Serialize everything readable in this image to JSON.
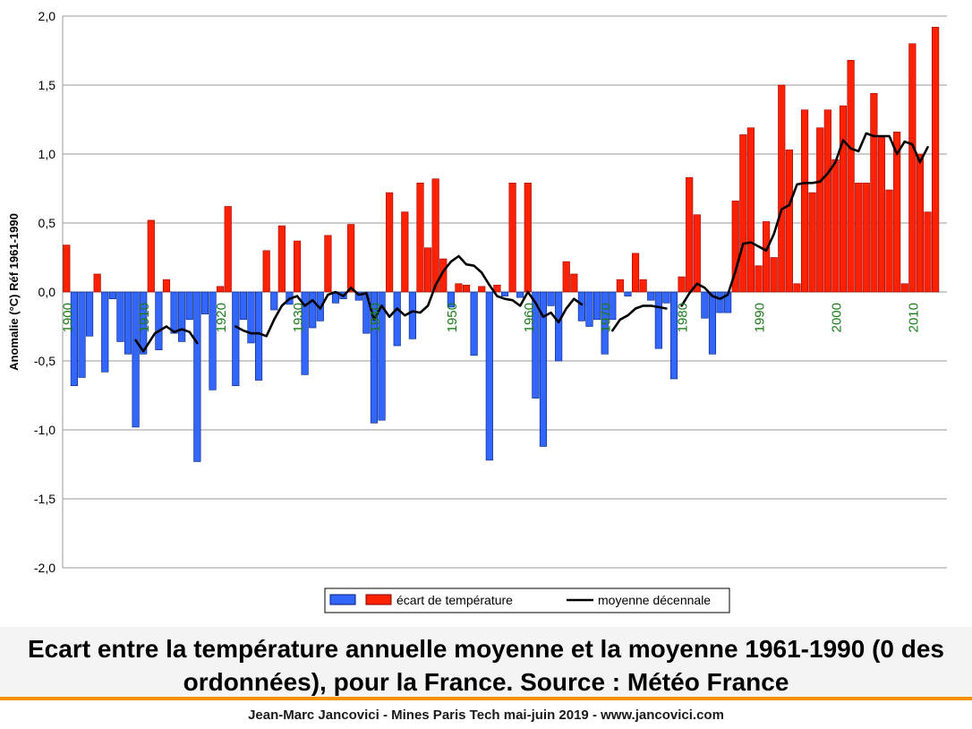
{
  "caption": {
    "line1": "Ecart entre la température annuelle moyenne et la moyenne 1961-1990 (0 des",
    "line2": "ordonnées), pour la France. Source : Météo France"
  },
  "footer": "Jean-Marc Jancovici - Mines Paris Tech mai-juin 2019 - www.jancovici.com",
  "colors": {
    "positive": "#ff2200",
    "negative": "#3366ff",
    "average_line": "#000000",
    "decade_label": "#1a7a1a",
    "caption_rule": "#f39200"
  },
  "chart_data": {
    "type": "bar",
    "title": "",
    "ylabel": "Anomalie (°C) Réf 1961-1990",
    "xlabel": "",
    "ylim": [
      -2.0,
      2.0
    ],
    "yticks": [
      -2.0,
      -1.5,
      -1.0,
      -0.5,
      0.0,
      0.5,
      1.0,
      1.5,
      2.0
    ],
    "ytick_labels": [
      "-2,0",
      "-1,5",
      "-1,0",
      "-0,5",
      "0,0",
      "0,5",
      "1,0",
      "1,5",
      "2,0"
    ],
    "grid": true,
    "legend_position": "bottom",
    "legend": {
      "bars": "écart de température",
      "line": "moyenne décennale"
    },
    "decade_labels": [
      "1900",
      "1910",
      "1920",
      "1930",
      "1940",
      "1950",
      "1960",
      "1970",
      "1980",
      "1990",
      "2000",
      "2010"
    ],
    "years": [
      1900,
      1901,
      1902,
      1903,
      1904,
      1905,
      1906,
      1907,
      1908,
      1909,
      1910,
      1911,
      1912,
      1913,
      1914,
      1915,
      1916,
      1917,
      1918,
      1919,
      1920,
      1921,
      1922,
      1923,
      1924,
      1925,
      1926,
      1927,
      1928,
      1929,
      1930,
      1931,
      1932,
      1933,
      1934,
      1935,
      1936,
      1937,
      1938,
      1939,
      1940,
      1941,
      1942,
      1943,
      1944,
      1945,
      1946,
      1947,
      1948,
      1949,
      1950,
      1951,
      1952,
      1953,
      1954,
      1955,
      1956,
      1957,
      1958,
      1959,
      1960,
      1961,
      1962,
      1963,
      1964,
      1965,
      1966,
      1967,
      1968,
      1969,
      1970,
      1971,
      1972,
      1973,
      1974,
      1975,
      1976,
      1977,
      1978,
      1979,
      1980,
      1981,
      1982,
      1983,
      1984,
      1985,
      1986,
      1987,
      1988,
      1989,
      1990,
      1991,
      1992,
      1993,
      1994,
      1995,
      1996,
      1997,
      1998,
      1999,
      2000,
      2001,
      2002,
      2003,
      2004,
      2005,
      2006,
      2007,
      2008,
      2009,
      2010,
      2011,
      2012,
      2013,
      2014
    ],
    "anomalies": [
      0.34,
      -0.68,
      -0.62,
      -0.32,
      0.13,
      -0.58,
      -0.05,
      -0.36,
      -0.45,
      -0.98,
      -0.45,
      0.52,
      -0.42,
      0.09,
      -0.3,
      -0.36,
      -0.2,
      -1.23,
      -0.16,
      -0.71,
      0.04,
      0.62,
      -0.68,
      -0.2,
      -0.37,
      -0.64,
      0.3,
      -0.13,
      0.48,
      -0.09,
      0.37,
      -0.6,
      -0.26,
      -0.21,
      0.41,
      -0.08,
      -0.05,
      0.49,
      -0.06,
      -0.3,
      -0.95,
      -0.93,
      0.72,
      -0.39,
      0.58,
      -0.34,
      0.79,
      0.32,
      0.82,
      0.24,
      -0.11,
      0.06,
      0.05,
      -0.46,
      0.04,
      -1.22,
      0.05,
      -0.03,
      0.79,
      -0.04,
      0.79,
      -0.77,
      -1.12,
      -0.1,
      -0.5,
      0.22,
      0.13,
      -0.21,
      -0.25,
      -0.2,
      -0.45,
      -0.2,
      0.09,
      -0.03,
      0.28,
      0.09,
      -0.06,
      -0.41,
      -0.08,
      -0.63,
      0.11,
      0.83,
      0.56,
      -0.19,
      -0.45,
      -0.15,
      -0.15,
      0.66,
      1.14,
      1.19,
      0.19,
      0.51,
      0.25,
      1.5,
      1.03,
      0.06,
      1.32,
      0.72,
      1.19,
      1.32,
      0.96,
      1.35,
      1.68,
      0.79,
      0.79,
      1.44,
      1.12,
      0.74,
      1.16,
      0.06,
      1.8,
      1.0,
      0.58,
      1.92,
      0.0
    ],
    "moving_average": [
      {
        "x": 1909,
        "y": -0.35
      },
      {
        "x": 1910,
        "y": -0.43
      },
      {
        "x": 1911.5,
        "y": -0.3
      },
      {
        "x": 1913,
        "y": -0.25
      },
      {
        "x": 1914,
        "y": -0.29
      },
      {
        "x": 1915,
        "y": -0.27
      },
      {
        "x": 1916,
        "y": -0.29
      },
      {
        "x": 1917,
        "y": -0.37
      },
      {
        "x": 1919,
        "y": -0.33
      },
      {
        "x": 1922,
        "y": -0.25
      },
      {
        "x": 1923,
        "y": -0.28
      },
      {
        "x": 1924,
        "y": -0.3
      },
      {
        "x": 1925,
        "y": -0.3
      },
      {
        "x": 1926,
        "y": -0.32
      },
      {
        "x": 1927,
        "y": -0.2
      },
      {
        "x": 1928,
        "y": -0.1
      },
      {
        "x": 1929,
        "y": -0.05
      },
      {
        "x": 1930,
        "y": -0.03
      },
      {
        "x": 1931,
        "y": -0.1
      },
      {
        "x": 1932,
        "y": -0.06
      },
      {
        "x": 1933,
        "y": -0.12
      },
      {
        "x": 1934,
        "y": -0.02
      },
      {
        "x": 1935,
        "y": 0.0
      },
      {
        "x": 1936,
        "y": -0.03
      },
      {
        "x": 1937,
        "y": 0.03
      },
      {
        "x": 1938,
        "y": -0.02
      },
      {
        "x": 1939,
        "y": -0.01
      },
      {
        "x": 1940,
        "y": -0.2
      },
      {
        "x": 1941,
        "y": -0.1
      },
      {
        "x": 1942,
        "y": -0.18
      },
      {
        "x": 1943,
        "y": -0.12
      },
      {
        "x": 1944,
        "y": -0.17
      },
      {
        "x": 1945,
        "y": -0.14
      },
      {
        "x": 1946,
        "y": -0.15
      },
      {
        "x": 1947,
        "y": -0.1
      },
      {
        "x": 1948,
        "y": 0.05
      },
      {
        "x": 1949,
        "y": 0.15
      },
      {
        "x": 1950,
        "y": 0.22
      },
      {
        "x": 1951,
        "y": 0.26
      },
      {
        "x": 1952,
        "y": 0.2
      },
      {
        "x": 1953,
        "y": 0.19
      },
      {
        "x": 1954,
        "y": 0.14
      },
      {
        "x": 1955,
        "y": 0.05
      },
      {
        "x": 1956,
        "y": -0.03
      },
      {
        "x": 1957,
        "y": -0.05
      },
      {
        "x": 1958,
        "y": -0.06
      },
      {
        "x": 1959,
        "y": -0.1
      },
      {
        "x": 1960,
        "y": 0.0
      },
      {
        "x": 1961,
        "y": -0.08
      },
      {
        "x": 1962,
        "y": -0.18
      },
      {
        "x": 1963,
        "y": -0.15
      },
      {
        "x": 1964,
        "y": -0.22
      },
      {
        "x": 1965,
        "y": -0.12
      },
      {
        "x": 1966,
        "y": -0.05
      },
      {
        "x": 1967,
        "y": -0.09
      },
      {
        "x": 1971,
        "y": -0.28
      },
      {
        "x": 1972,
        "y": -0.2
      },
      {
        "x": 1973,
        "y": -0.17
      },
      {
        "x": 1974,
        "y": -0.12
      },
      {
        "x": 1975,
        "y": -0.1
      },
      {
        "x": 1976,
        "y": -0.1
      },
      {
        "x": 1977,
        "y": -0.11
      },
      {
        "x": 1978,
        "y": -0.12
      },
      {
        "x": 1980,
        "y": -0.1
      },
      {
        "x": 1981,
        "y": -0.01
      },
      {
        "x": 1982,
        "y": 0.06
      },
      {
        "x": 1983,
        "y": 0.03
      },
      {
        "x": 1984,
        "y": -0.03
      },
      {
        "x": 1985,
        "y": -0.05
      },
      {
        "x": 1986,
        "y": -0.02
      },
      {
        "x": 1987,
        "y": 0.15
      },
      {
        "x": 1988,
        "y": 0.35
      },
      {
        "x": 1989,
        "y": 0.36
      },
      {
        "x": 1990,
        "y": 0.33
      },
      {
        "x": 1991,
        "y": 0.3
      },
      {
        "x": 1992,
        "y": 0.42
      },
      {
        "x": 1993,
        "y": 0.6
      },
      {
        "x": 1994,
        "y": 0.63
      },
      {
        "x": 1995,
        "y": 0.78
      },
      {
        "x": 1996,
        "y": 0.79
      },
      {
        "x": 1997,
        "y": 0.79
      },
      {
        "x": 1998,
        "y": 0.8
      },
      {
        "x": 1999,
        "y": 0.86
      },
      {
        "x": 2000,
        "y": 0.94
      },
      {
        "x": 2001,
        "y": 1.1
      },
      {
        "x": 2002,
        "y": 1.04
      },
      {
        "x": 2003,
        "y": 1.02
      },
      {
        "x": 2004,
        "y": 1.15
      },
      {
        "x": 2005,
        "y": 1.13
      },
      {
        "x": 2006,
        "y": 1.13
      },
      {
        "x": 2007,
        "y": 1.13
      },
      {
        "x": 2008,
        "y": 1.0
      },
      {
        "x": 2009,
        "y": 1.09
      },
      {
        "x": 2010,
        "y": 1.07
      },
      {
        "x": 2011,
        "y": 0.94
      },
      {
        "x": 2012,
        "y": 1.05
      }
    ]
  }
}
